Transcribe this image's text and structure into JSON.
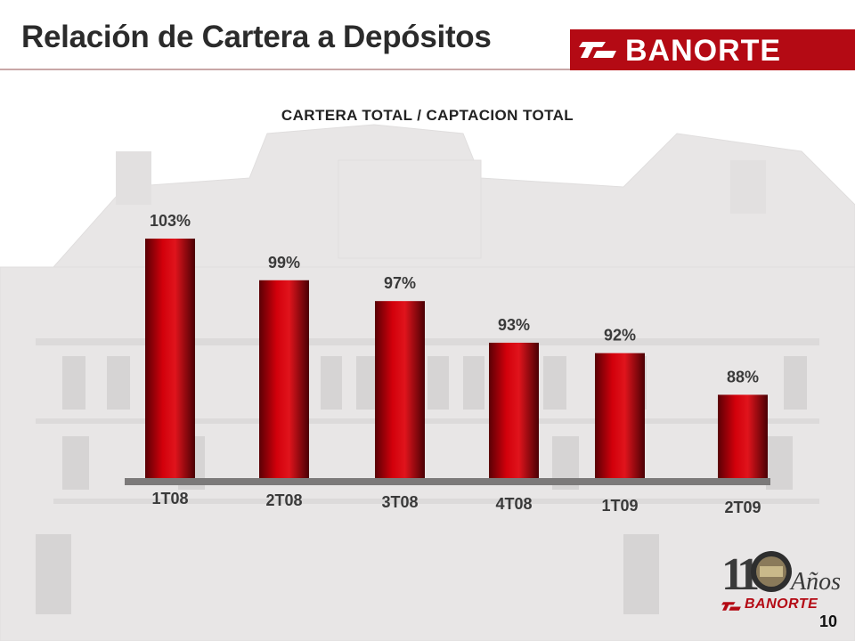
{
  "slide": {
    "title": "Relación de Cartera a Depósitos",
    "page_number": "10"
  },
  "brand": {
    "name": "BANORTE",
    "accent_color": "#b40a14"
  },
  "anniversary_logo": {
    "number": "110",
    "word": "Años",
    "brand": "BANORTE"
  },
  "chart_data": {
    "type": "bar",
    "title": "CARTERA TOTAL / CAPTACION TOTAL",
    "categories": [
      "1T08",
      "2T08",
      "3T08",
      "4T08",
      "1T09",
      "2T09"
    ],
    "values": [
      103,
      99,
      97,
      93,
      92,
      88
    ],
    "value_labels": [
      "103%",
      "99%",
      "97%",
      "93%",
      "92%",
      "88%"
    ],
    "unit": "%",
    "bar_color": "#c8000a",
    "grid": false,
    "legend": "none"
  }
}
